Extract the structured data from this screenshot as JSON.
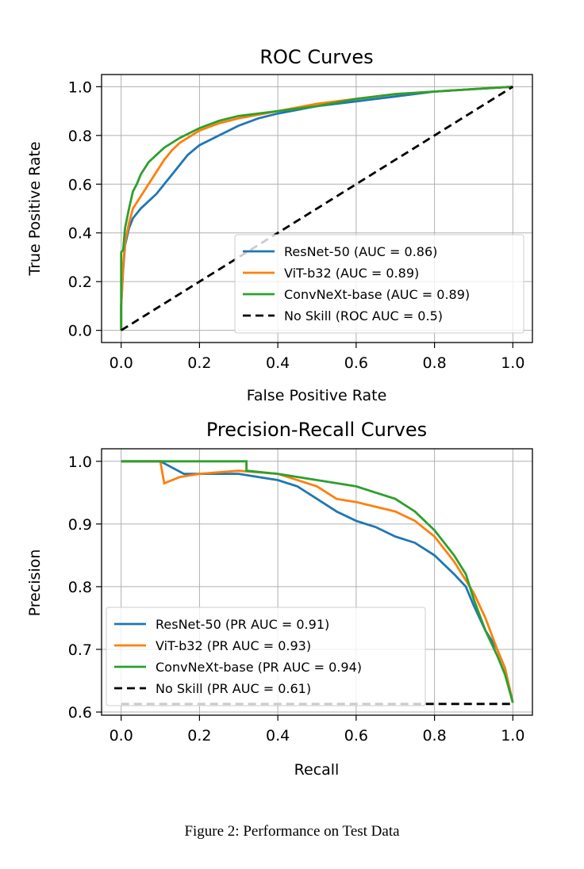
{
  "caption": "Figure 2: Performance on Test Data",
  "chart_data": [
    {
      "type": "line",
      "title": "ROC Curves",
      "xlabel": "False Positive Rate",
      "ylabel": "True Positive Rate",
      "xlim": [
        -0.05,
        1.05
      ],
      "ylim": [
        -0.05,
        1.05
      ],
      "xticks": [
        0.0,
        0.2,
        0.4,
        0.6,
        0.8,
        1.0
      ],
      "yticks": [
        0.0,
        0.2,
        0.4,
        0.6,
        0.8,
        1.0
      ],
      "xtick_labels": [
        "0.0",
        "0.2",
        "0.4",
        "0.6",
        "0.8",
        "1.0"
      ],
      "ytick_labels": [
        "0.0",
        "0.2",
        "0.4",
        "0.6",
        "0.8",
        "1.0"
      ],
      "grid": true,
      "legend_position": "lower right",
      "series": [
        {
          "name": "ResNet-50 (AUC = 0.86)",
          "color": "#1f77b4",
          "dashed": false,
          "x": [
            0.0,
            0.0,
            0.005,
            0.01,
            0.02,
            0.03,
            0.05,
            0.07,
            0.09,
            0.11,
            0.13,
            0.15,
            0.17,
            0.2,
            0.25,
            0.3,
            0.35,
            0.4,
            0.5,
            0.6,
            0.7,
            0.8,
            0.9,
            1.0
          ],
          "y": [
            0.0,
            0.1,
            0.25,
            0.35,
            0.42,
            0.46,
            0.5,
            0.53,
            0.56,
            0.6,
            0.64,
            0.68,
            0.72,
            0.76,
            0.8,
            0.84,
            0.87,
            0.89,
            0.92,
            0.94,
            0.96,
            0.98,
            0.99,
            1.0
          ]
        },
        {
          "name": "ViT-b32 (AUC = 0.89)",
          "color": "#ff7f0e",
          "dashed": false,
          "x": [
            0.0,
            0.0,
            0.005,
            0.01,
            0.02,
            0.03,
            0.05,
            0.07,
            0.09,
            0.11,
            0.13,
            0.15,
            0.2,
            0.25,
            0.3,
            0.4,
            0.5,
            0.6,
            0.7,
            0.8,
            0.9,
            1.0
          ],
          "y": [
            0.0,
            0.1,
            0.27,
            0.36,
            0.44,
            0.5,
            0.55,
            0.6,
            0.65,
            0.7,
            0.74,
            0.77,
            0.82,
            0.85,
            0.87,
            0.9,
            0.93,
            0.95,
            0.97,
            0.98,
            0.99,
            1.0
          ]
        },
        {
          "name": "ConvNeXt-base (AUC = 0.89)",
          "color": "#2ca02c",
          "dashed": false,
          "x": [
            0.0,
            0.0,
            0.005,
            0.01,
            0.02,
            0.03,
            0.04,
            0.05,
            0.07,
            0.09,
            0.11,
            0.13,
            0.15,
            0.2,
            0.25,
            0.3,
            0.4,
            0.5,
            0.6,
            0.7,
            0.8,
            0.9,
            1.0
          ],
          "y": [
            0.0,
            0.32,
            0.33,
            0.42,
            0.5,
            0.57,
            0.6,
            0.64,
            0.69,
            0.72,
            0.75,
            0.77,
            0.79,
            0.83,
            0.86,
            0.88,
            0.9,
            0.92,
            0.95,
            0.97,
            0.98,
            0.99,
            1.0
          ]
        },
        {
          "name": "No Skill (ROC AUC = 0.5)",
          "color": "#000000",
          "dashed": true,
          "x": [
            0.0,
            1.0
          ],
          "y": [
            0.0,
            1.0
          ]
        }
      ]
    },
    {
      "type": "line",
      "title": "Precision-Recall Curves",
      "xlabel": "Recall",
      "ylabel": "Precision",
      "xlim": [
        -0.05,
        1.05
      ],
      "ylim": [
        0.595,
        1.02
      ],
      "xticks": [
        0.0,
        0.2,
        0.4,
        0.6,
        0.8,
        1.0
      ],
      "yticks": [
        0.6,
        0.7,
        0.8,
        0.9,
        1.0
      ],
      "xtick_labels": [
        "0.0",
        "0.2",
        "0.4",
        "0.6",
        "0.8",
        "1.0"
      ],
      "ytick_labels": [
        "0.6",
        "0.7",
        "0.8",
        "0.9",
        "1.0"
      ],
      "grid": true,
      "legend_position": "lower left",
      "series": [
        {
          "name": "ResNet-50 (PR AUC = 0.91)",
          "color": "#1f77b4",
          "dashed": false,
          "x": [
            0.0,
            0.1,
            0.13,
            0.16,
            0.2,
            0.3,
            0.35,
            0.4,
            0.45,
            0.5,
            0.55,
            0.6,
            0.65,
            0.7,
            0.75,
            0.8,
            0.85,
            0.88,
            0.9,
            0.93,
            0.96,
            0.98,
            1.0
          ],
          "y": [
            1.0,
            1.0,
            0.99,
            0.98,
            0.98,
            0.98,
            0.975,
            0.97,
            0.96,
            0.94,
            0.92,
            0.905,
            0.895,
            0.88,
            0.87,
            0.85,
            0.82,
            0.8,
            0.77,
            0.73,
            0.7,
            0.67,
            0.615
          ]
        },
        {
          "name": "ViT-b32 (PR AUC = 0.93)",
          "color": "#ff7f0e",
          "dashed": false,
          "x": [
            0.0,
            0.1,
            0.11,
            0.15,
            0.2,
            0.3,
            0.4,
            0.5,
            0.55,
            0.6,
            0.7,
            0.75,
            0.8,
            0.85,
            0.9,
            0.93,
            0.96,
            0.98,
            1.0
          ],
          "y": [
            1.0,
            1.0,
            0.965,
            0.975,
            0.98,
            0.985,
            0.98,
            0.96,
            0.94,
            0.935,
            0.92,
            0.905,
            0.88,
            0.84,
            0.79,
            0.75,
            0.7,
            0.67,
            0.615
          ]
        },
        {
          "name": "ConvNeXt-base (PR AUC = 0.94)",
          "color": "#2ca02c",
          "dashed": false,
          "x": [
            0.0,
            0.32,
            0.32,
            0.4,
            0.5,
            0.6,
            0.65,
            0.7,
            0.75,
            0.8,
            0.85,
            0.88,
            0.9,
            0.93,
            0.96,
            0.98,
            1.0
          ],
          "y": [
            1.0,
            1.0,
            0.985,
            0.98,
            0.97,
            0.96,
            0.95,
            0.94,
            0.92,
            0.89,
            0.85,
            0.82,
            0.78,
            0.73,
            0.69,
            0.66,
            0.615
          ]
        },
        {
          "name": "No Skill (PR AUC = 0.61)",
          "color": "#000000",
          "dashed": true,
          "x": [
            0.0,
            1.0
          ],
          "y": [
            0.613,
            0.613
          ]
        }
      ]
    }
  ]
}
